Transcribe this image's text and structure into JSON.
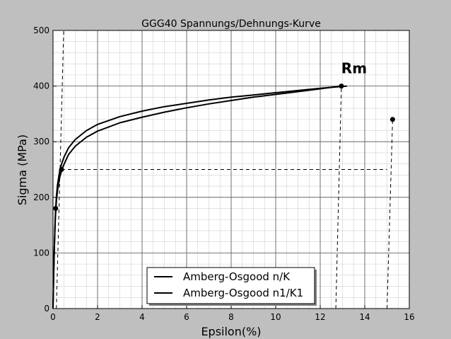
{
  "chart_data": {
    "type": "line",
    "title": "GGG40 Spannungs/Dehnungs-Kurve",
    "xlabel": "Epsilon(%)",
    "ylabel": "Sigma (MPa)",
    "xlim": [
      0,
      16
    ],
    "ylim": [
      0,
      500
    ],
    "xticks": [
      0,
      2,
      4,
      6,
      8,
      10,
      12,
      14,
      16
    ],
    "yticks": [
      0,
      100,
      200,
      300,
      400,
      500
    ],
    "xtick_labels": [
      "0",
      "2",
      "4",
      "6",
      "8",
      "10",
      "12",
      "14",
      "16"
    ],
    "ytick_labels": [
      "0",
      "100",
      "200",
      "300",
      "400",
      "500"
    ],
    "grid": true,
    "minor_grid": true,
    "legend_position": "bottom-center",
    "series": [
      {
        "name": "Amberg-Osgood n/K",
        "color": "#000000",
        "x": [
          0,
          0.03,
          0.06,
          0.1,
          0.15,
          0.2,
          0.3,
          0.4,
          0.5,
          0.7,
          1,
          1.5,
          2,
          3,
          4,
          5,
          6,
          7,
          8,
          9,
          10,
          11,
          12,
          12.9,
          13.2
        ],
        "y": [
          0,
          60,
          110,
          165,
          200,
          222,
          248,
          262,
          273,
          289,
          304,
          320,
          331,
          345,
          355,
          363,
          369,
          375,
          380,
          384,
          388,
          392,
          396,
          399,
          400
        ]
      },
      {
        "name": "Amberg-Osgood n1/K1",
        "color": "#000000",
        "x": [
          0,
          0.03,
          0.06,
          0.1,
          0.15,
          0.2,
          0.3,
          0.4,
          0.5,
          0.7,
          1,
          1.5,
          2,
          3,
          4,
          5,
          6,
          7,
          8,
          9,
          10,
          11,
          12,
          12.9
        ],
        "y": [
          0,
          60,
          110,
          160,
          192,
          212,
          236,
          250,
          260,
          277,
          292,
          308,
          319,
          334,
          344,
          353,
          361,
          368,
          374,
          380,
          385,
          390,
          395,
          400
        ]
      }
    ],
    "markers": [
      {
        "x": 0.12,
        "y": 180
      },
      {
        "x": 0.38,
        "y": 250
      },
      {
        "x": 12.95,
        "y": 400
      },
      {
        "x": 15.25,
        "y": 340
      }
    ],
    "dashed_lines": [
      {
        "x1": 0.15,
        "y1": 0,
        "x2": 0.48,
        "y2": 500
      },
      {
        "x1": 0.38,
        "y1": 250,
        "x2": 15.0,
        "y2": 250
      },
      {
        "x1": 12.7,
        "y1": 0,
        "x2": 12.95,
        "y2": 400
      },
      {
        "x1": 15.0,
        "y1": 0,
        "x2": 15.25,
        "y2": 340
      }
    ],
    "annotations": [
      {
        "text": "Rm",
        "x": 12.95,
        "y": 410
      }
    ]
  }
}
